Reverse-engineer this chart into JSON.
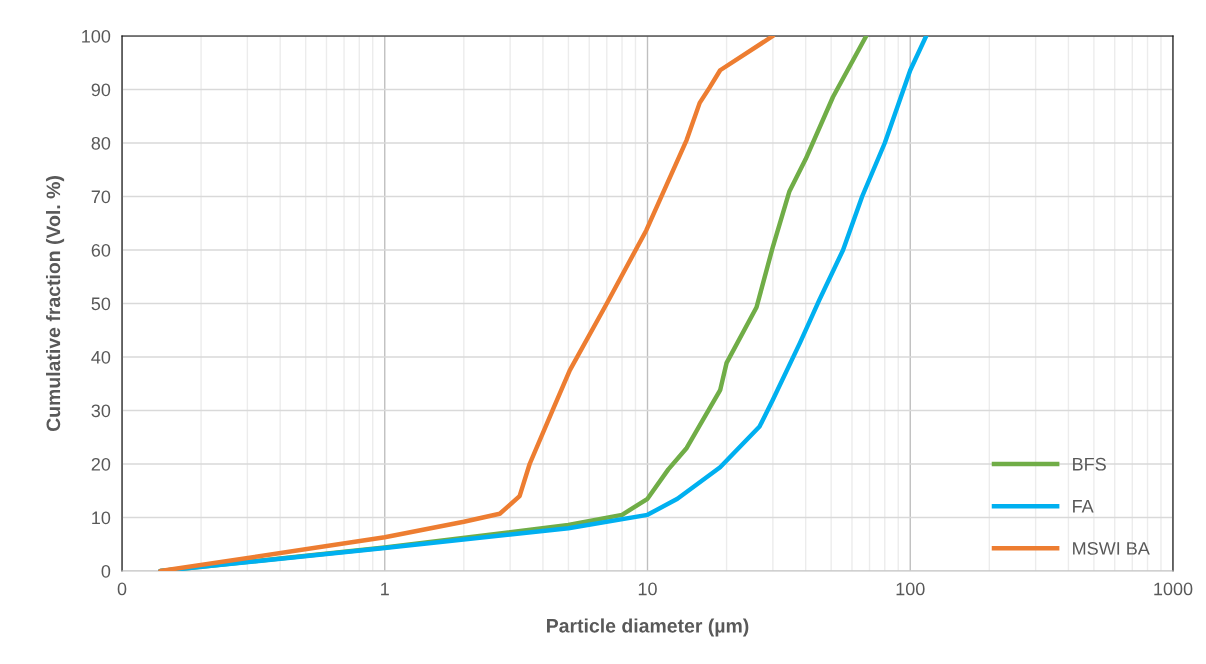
{
  "chart_data": {
    "type": "line",
    "xlabel": "Particle diameter (µm)",
    "ylabel": "Cumulative fraction (Vol. %)",
    "log": "x",
    "xlim": [
      0.1,
      1000
    ],
    "xticks": [
      {
        "value": 0.1,
        "label": "0"
      },
      1,
      10,
      100,
      1000
    ],
    "ylim": [
      0,
      100
    ],
    "yticks": [
      0,
      10,
      20,
      30,
      40,
      50,
      60,
      70,
      80,
      90,
      100
    ],
    "grid": true,
    "legend": "bottom right",
    "marker": "none",
    "line_style": "solid",
    "series": [
      {
        "name": "BFS",
        "color": "#70ad47",
        "x": [
          0.14,
          1,
          5,
          8,
          10,
          12,
          14.1,
          18.9,
          20,
          26,
          30,
          34.7,
          40,
          50.8,
          68
        ],
        "values": [
          0,
          4.4,
          8.6,
          10.5,
          13.5,
          19,
          23,
          33.8,
          38.9,
          49.3,
          60.6,
          71,
          77,
          88.6,
          100
        ]
      },
      {
        "name": "FA",
        "color": "#00b0f0",
        "x": [
          0.14,
          1,
          5,
          10,
          13,
          18.9,
          26.7,
          30,
          38,
          45,
          55.5,
          65.6,
          80,
          100,
          115
        ],
        "values": [
          0,
          4.3,
          8,
          10.5,
          13.5,
          19.4,
          27,
          32,
          42.6,
          50.6,
          60,
          70,
          80,
          93.6,
          100
        ]
      },
      {
        "name": "MSWI BA",
        "color": "#ed7d31",
        "x": [
          0.14,
          1,
          2,
          2.74,
          3.26,
          3.56,
          4.4,
          5.06,
          7,
          9.9,
          14.1,
          15.8,
          17.2,
          18.9,
          30
        ],
        "values": [
          0,
          6.3,
          9.2,
          10.7,
          14,
          20,
          30.6,
          37.5,
          50,
          63.7,
          80.6,
          87.5,
          90.3,
          93.6,
          100
        ]
      }
    ]
  }
}
